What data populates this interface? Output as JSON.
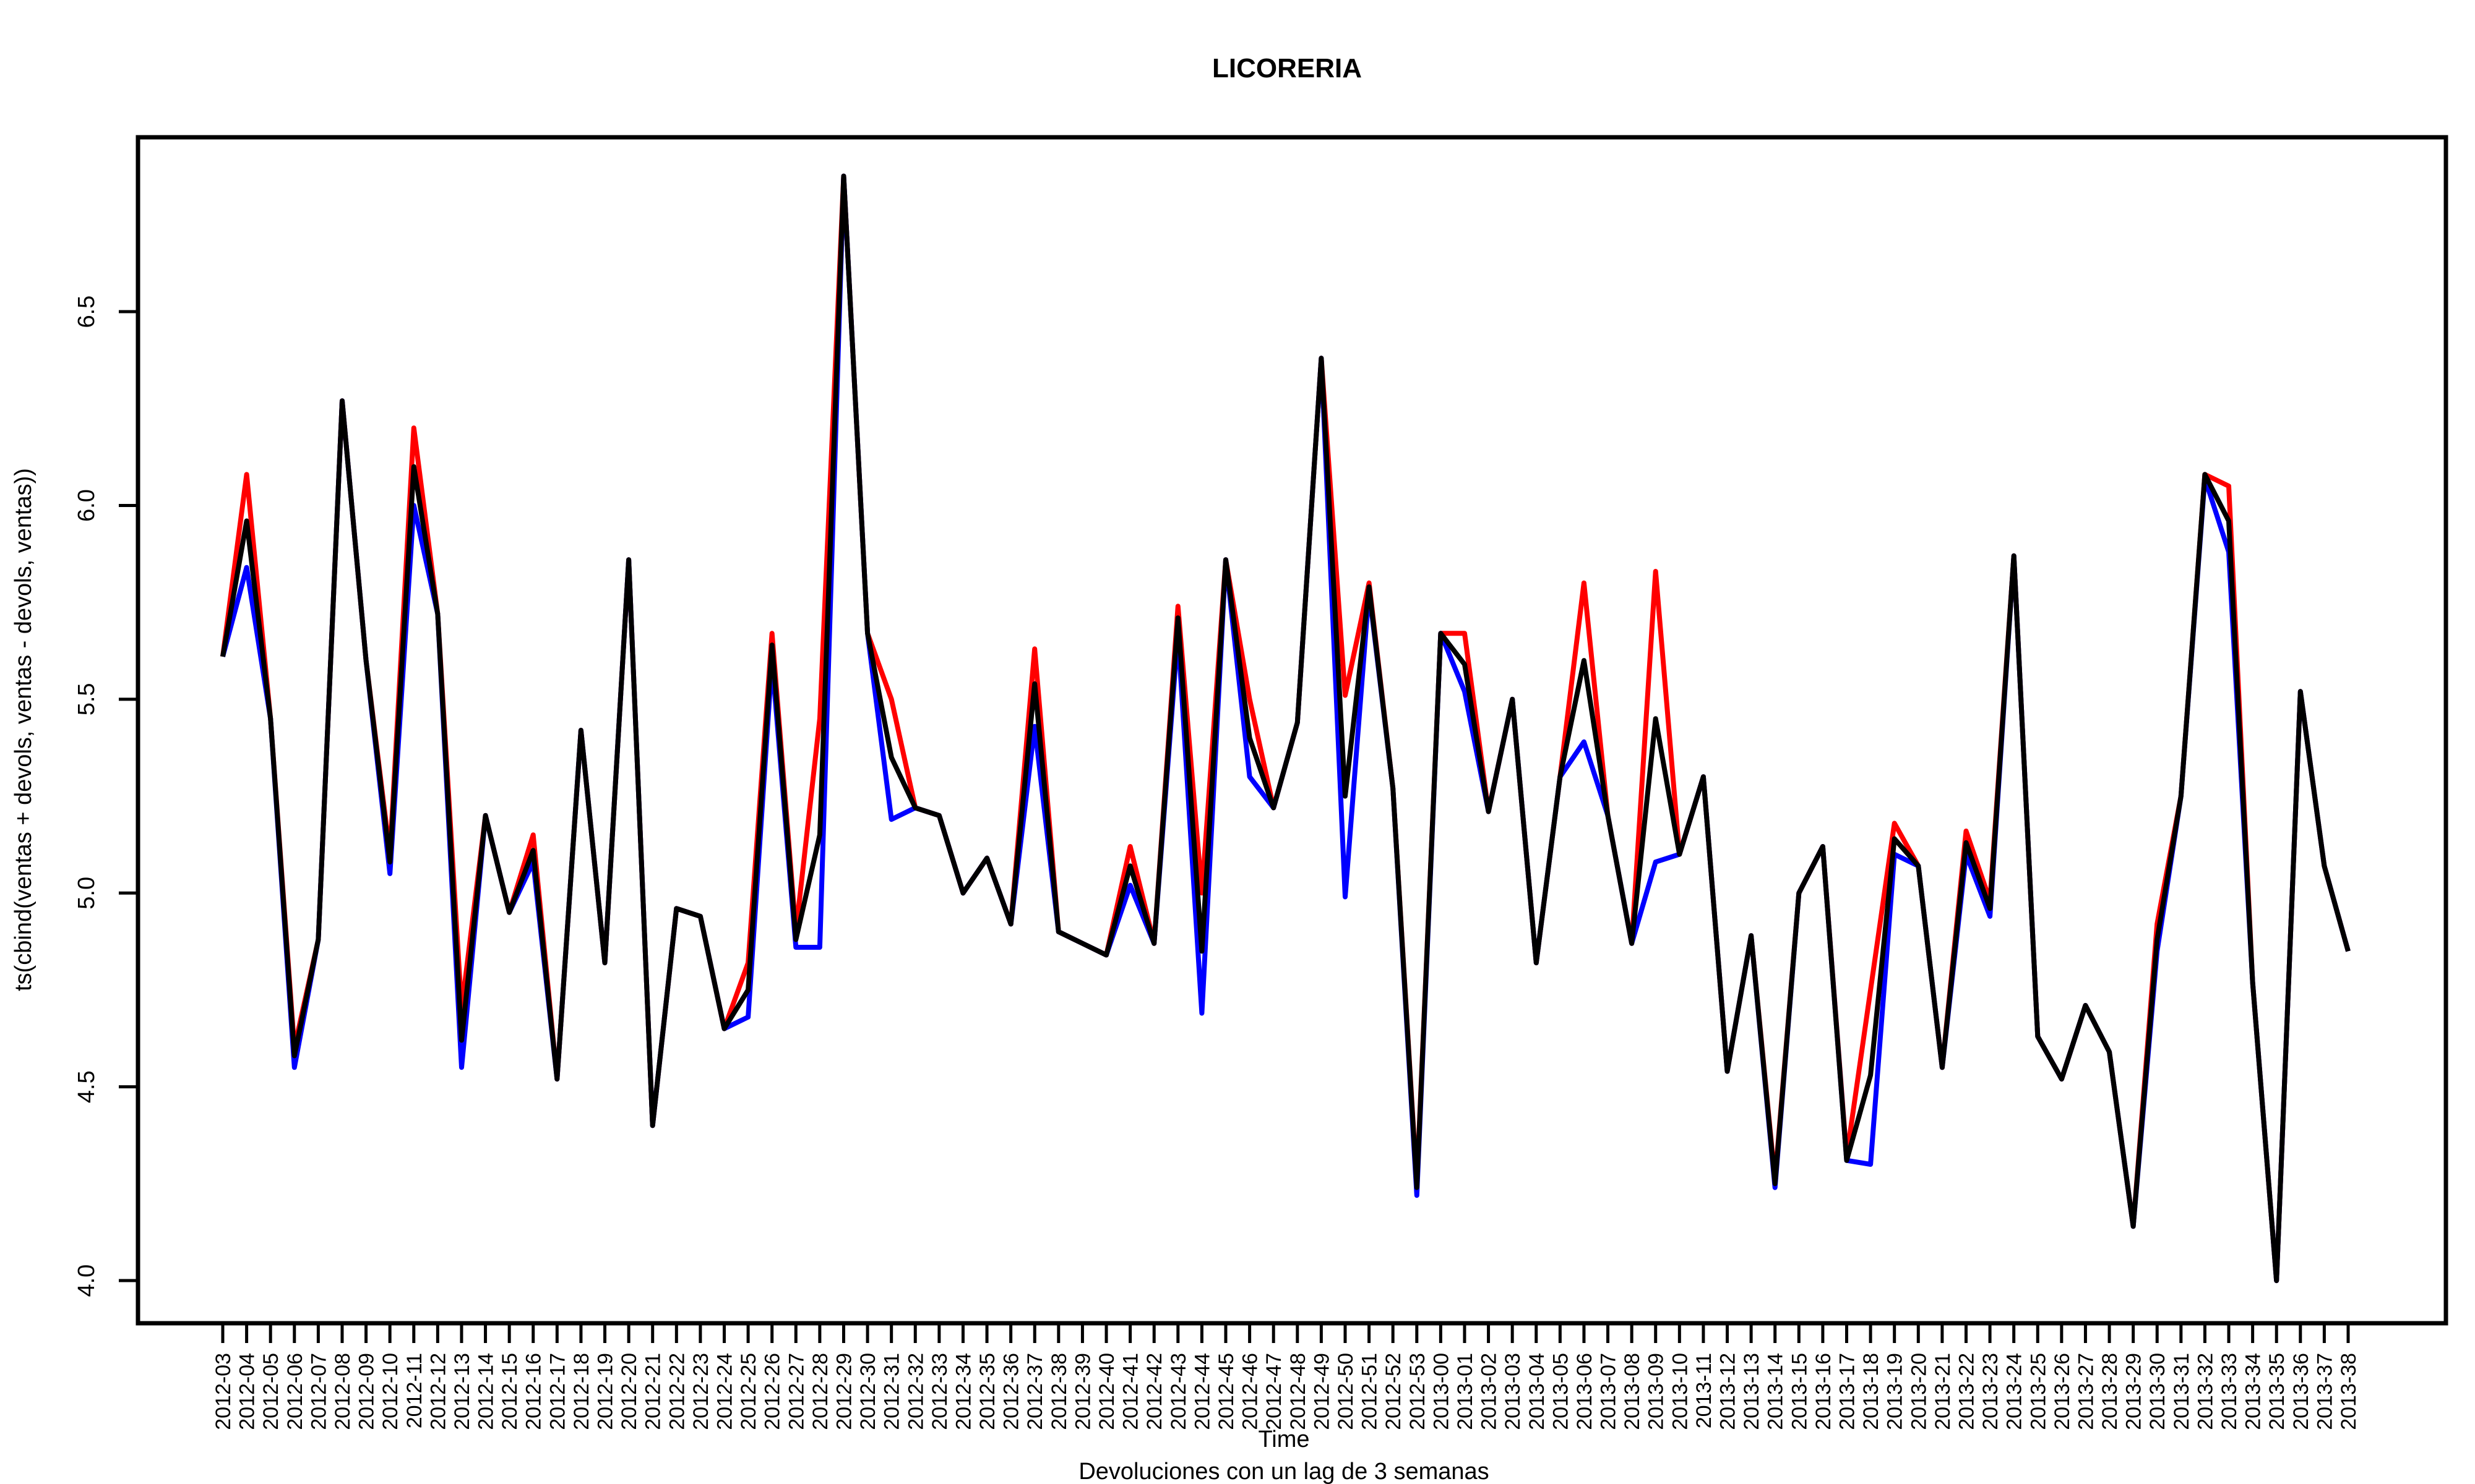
{
  "chart_data": {
    "type": "line",
    "title": "LICORERIA",
    "xlabel": "Time",
    "ylabel": "ts(cbind(ventas + devols, ventas - devols, ventas))",
    "subtitle": "Devoluciones con un lag de 3 semanas",
    "yticks": [
      "4.0",
      "4.5",
      "5.0",
      "5.5",
      "6.0",
      "6.5"
    ],
    "ylim": [
      3.89,
      6.95
    ],
    "grid": false,
    "categories": [
      "2012-03",
      "2012-04",
      "2012-05",
      "2012-06",
      "2012-07",
      "2012-08",
      "2012-09",
      "2012-10",
      "2012-11",
      "2012-12",
      "2012-13",
      "2012-14",
      "2012-15",
      "2012-16",
      "2012-17",
      "2012-18",
      "2012-19",
      "2012-20",
      "2012-21",
      "2012-22",
      "2012-23",
      "2012-24",
      "2012-25",
      "2012-26",
      "2012-27",
      "2012-28",
      "2012-29",
      "2012-30",
      "2012-31",
      "2012-32",
      "2012-33",
      "2012-34",
      "2012-35",
      "2012-36",
      "2012-37",
      "2012-38",
      "2012-39",
      "2012-40",
      "2012-41",
      "2012-42",
      "2012-43",
      "2012-44",
      "2012-45",
      "2012-46",
      "2012-47",
      "2012-48",
      "2012-49",
      "2012-50",
      "2012-51",
      "2012-52",
      "2012-53",
      "2013-00",
      "2013-01",
      "2013-02",
      "2013-03",
      "2013-04",
      "2013-05",
      "2013-06",
      "2013-07",
      "2013-08",
      "2013-09",
      "2013-10",
      "2013-11",
      "2013-12",
      "2013-13",
      "2013-14",
      "2013-15",
      "2013-16",
      "2013-17",
      "2013-18",
      "2013-19",
      "2013-20",
      "2013-21",
      "2013-22",
      "2013-23",
      "2013-24",
      "2013-25",
      "2013-26",
      "2013-27",
      "2013-28",
      "2013-29",
      "2013-30",
      "2013-31",
      "2013-32",
      "2013-33",
      "2013-34",
      "2013-35",
      "2013-36",
      "2013-37",
      "2013-38"
    ],
    "series": [
      {
        "color": "#ff0000",
        "values": [
          5.61,
          6.08,
          5.45,
          4.6,
          4.88,
          6.27,
          5.6,
          5.1,
          6.2,
          5.72,
          4.7,
          5.2,
          4.95,
          5.15,
          4.52,
          5.42,
          4.82,
          5.86,
          4.4,
          4.96,
          4.94,
          4.65,
          4.82,
          5.67,
          4.9,
          5.45,
          6.85,
          5.67,
          5.5,
          5.22,
          5.2,
          5.0,
          5.09,
          4.92,
          5.63,
          4.9,
          4.87,
          4.84,
          5.12,
          4.87,
          5.74,
          5.0,
          5.86,
          5.5,
          5.22,
          5.44,
          6.38,
          5.51,
          5.8,
          5.27,
          4.25,
          5.67,
          5.67,
          5.21,
          5.5,
          4.82,
          5.3,
          5.8,
          5.2,
          4.87,
          5.83,
          5.1,
          5.3,
          4.54,
          4.89,
          4.26,
          5.0,
          5.12,
          4.32,
          4.75,
          5.18,
          5.07,
          4.55,
          5.16,
          4.98,
          5.87,
          4.63,
          4.52,
          4.71,
          4.59,
          4.14,
          4.92,
          5.25,
          6.08,
          6.05,
          4.77,
          4.0,
          5.52,
          5.07,
          4.85
        ]
      },
      {
        "color": "#0000ff",
        "values": [
          5.61,
          5.84,
          5.45,
          4.55,
          4.88,
          6.27,
          5.6,
          5.05,
          6.0,
          5.72,
          4.55,
          5.2,
          4.95,
          5.08,
          4.52,
          5.42,
          4.82,
          5.86,
          4.4,
          4.96,
          4.94,
          4.65,
          4.68,
          5.6,
          4.86,
          4.86,
          6.85,
          5.67,
          5.19,
          5.22,
          5.2,
          5.0,
          5.09,
          4.92,
          5.43,
          4.9,
          4.87,
          4.84,
          5.02,
          4.87,
          5.67,
          4.69,
          5.86,
          5.3,
          5.22,
          5.44,
          6.38,
          4.99,
          5.78,
          5.27,
          4.22,
          5.67,
          5.52,
          5.21,
          5.5,
          4.82,
          5.3,
          5.39,
          5.2,
          4.87,
          5.08,
          5.1,
          5.3,
          4.54,
          4.89,
          4.24,
          5.0,
          5.12,
          4.31,
          4.3,
          5.1,
          5.07,
          4.55,
          5.1,
          4.94,
          5.87,
          4.63,
          4.52,
          4.71,
          4.59,
          4.14,
          4.85,
          5.25,
          6.07,
          5.88,
          4.77,
          4.0,
          5.52,
          5.07,
          4.85
        ]
      },
      {
        "color": "#000000",
        "values": [
          5.61,
          5.96,
          5.45,
          4.58,
          4.88,
          6.27,
          5.6,
          5.08,
          6.1,
          5.72,
          4.62,
          5.2,
          4.95,
          5.11,
          4.52,
          5.42,
          4.82,
          5.86,
          4.4,
          4.96,
          4.94,
          4.65,
          4.75,
          5.64,
          4.88,
          5.15,
          6.85,
          5.67,
          5.35,
          5.22,
          5.2,
          5.0,
          5.09,
          4.92,
          5.54,
          4.9,
          4.87,
          4.84,
          5.07,
          4.87,
          5.71,
          4.85,
          5.86,
          5.4,
          5.22,
          5.44,
          6.38,
          5.25,
          5.79,
          5.27,
          4.24,
          5.67,
          5.59,
          5.21,
          5.5,
          4.82,
          5.3,
          5.6,
          5.2,
          4.87,
          5.45,
          5.1,
          5.3,
          4.54,
          4.89,
          4.25,
          5.0,
          5.12,
          4.31,
          4.53,
          5.14,
          5.07,
          4.55,
          5.13,
          4.96,
          5.87,
          4.63,
          4.52,
          4.71,
          4.59,
          4.14,
          4.88,
          5.25,
          6.08,
          5.96,
          4.77,
          4.0,
          5.52,
          5.07,
          4.85
        ]
      }
    ]
  }
}
